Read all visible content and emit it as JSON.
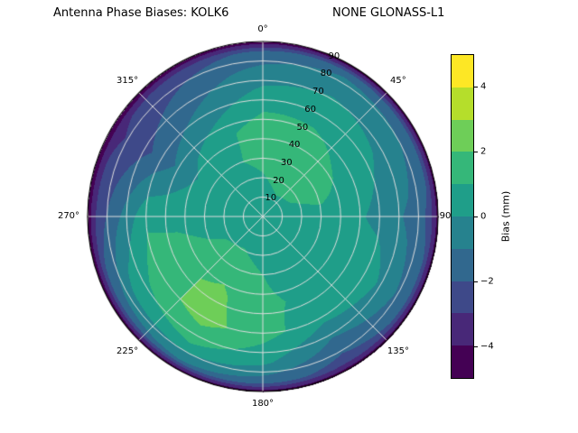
{
  "window": {
    "background": "#ffffff"
  },
  "chart_data": {
    "type": "heatmap",
    "projection": "polar",
    "title_left": "Antenna Phase Biases: KOLK6",
    "title_right": "NONE GLONASS-L1",
    "legend_position": "right-colorbar",
    "grid_on": true,
    "theta_direction": "clockwise-from-north",
    "theta_ticks": [
      {
        "angle_deg": 0,
        "label": "0°"
      },
      {
        "angle_deg": 45,
        "label": "45°"
      },
      {
        "angle_deg": 90,
        "label": "90"
      },
      {
        "angle_deg": 135,
        "label": "135°"
      },
      {
        "angle_deg": 180,
        "label": "180°"
      },
      {
        "angle_deg": 225,
        "label": "225°"
      },
      {
        "angle_deg": 270,
        "label": "270°"
      },
      {
        "angle_deg": 315,
        "label": "315°"
      }
    ],
    "r_ticks": [
      {
        "value": 10,
        "label": "10"
      },
      {
        "value": 20,
        "label": "20"
      },
      {
        "value": 30,
        "label": "30"
      },
      {
        "value": 40,
        "label": "40"
      },
      {
        "value": 50,
        "label": "50"
      },
      {
        "value": 60,
        "label": "60"
      },
      {
        "value": 70,
        "label": "70"
      },
      {
        "value": 80,
        "label": "80"
      },
      {
        "value": 90,
        "label": "90"
      }
    ],
    "r_range": [
      0,
      90
    ],
    "rlabel_angle_deg": 24,
    "levels": [
      -5,
      -4,
      -3,
      -2,
      -1,
      0,
      1,
      2,
      3,
      4,
      5
    ],
    "colormap": [
      "#440154",
      "#482878",
      "#3e4989",
      "#31688e",
      "#26828e",
      "#1f9e89",
      "#35b779",
      "#6ece58",
      "#b5de2b",
      "#fde725"
    ],
    "grid_line_color": "#dedede",
    "colorbar": {
      "label": "Bias (mm)",
      "range": [
        -5,
        5
      ],
      "ticks": [
        {
          "value": -4,
          "label": "−4"
        },
        {
          "value": -2,
          "label": "−2"
        },
        {
          "value": 0,
          "label": "0"
        },
        {
          "value": 2,
          "label": "2"
        },
        {
          "value": 4,
          "label": "4"
        }
      ]
    },
    "grid": {
      "azimuth_deg": [
        0,
        30,
        60,
        90,
        120,
        150,
        180,
        210,
        240,
        270,
        300,
        330,
        360
      ],
      "zenith_deg": [
        0,
        15,
        30,
        45,
        60,
        75,
        85,
        90
      ],
      "bias_mm": [
        [
          0.4,
          0.4,
          0.4,
          0.4,
          0.4,
          0.4,
          0.4,
          0.4,
          0.4,
          0.4,
          0.4,
          0.4,
          0.4
        ],
        [
          0.8,
          1.1,
          1.0,
          0.6,
          0.3,
          0.3,
          0.5,
          0.8,
          0.8,
          0.5,
          0.4,
          0.6,
          0.8
        ],
        [
          1.2,
          1.8,
          1.6,
          0.6,
          0.2,
          0.5,
          1.0,
          1.6,
          1.2,
          0.4,
          0.6,
          0.9,
          1.2
        ],
        [
          1.6,
          1.4,
          0.8,
          0.3,
          0.5,
          0.8,
          1.2,
          2.2,
          1.8,
          0.6,
          -0.4,
          0.6,
          1.6
        ],
        [
          0.6,
          0.6,
          0.2,
          -0.3,
          0.6,
          0.3,
          1.4,
          2.4,
          1.6,
          0.8,
          -1.6,
          -0.6,
          0.6
        ],
        [
          -0.6,
          -0.2,
          -0.4,
          -1.2,
          -0.6,
          -1.4,
          0.2,
          1.0,
          0.4,
          -1.2,
          -2.6,
          -1.6,
          -0.6
        ],
        [
          -1.8,
          -1.2,
          -1.6,
          -2.2,
          -1.8,
          -2.4,
          -1.6,
          -1.0,
          -1.6,
          -2.6,
          -3.2,
          -2.4,
          -1.8
        ],
        [
          -4.6,
          -4.6,
          -4.6,
          -4.6,
          -4.6,
          -4.6,
          -4.6,
          -4.6,
          -4.6,
          -4.6,
          -4.6,
          -4.6,
          -4.6
        ]
      ]
    }
  }
}
